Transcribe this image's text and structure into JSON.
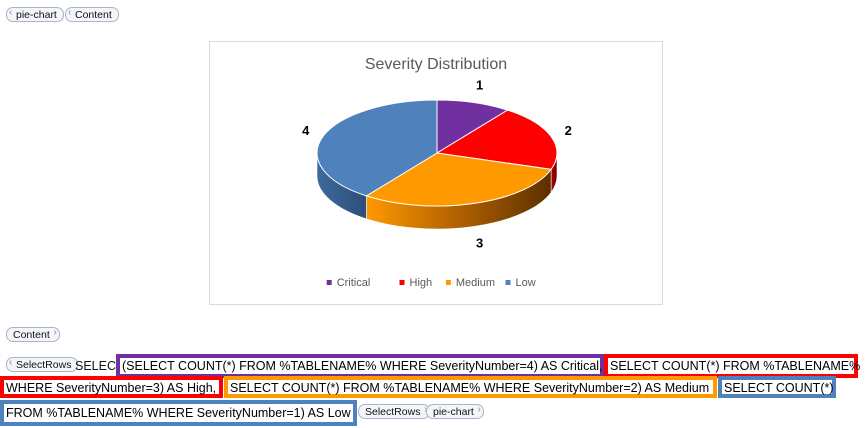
{
  "tags": {
    "top_pie": "pie-chart",
    "top_content": "Content",
    "mid_content": "Content",
    "select_open": "SelectRows",
    "select_close": "SelectRows",
    "bottom_pie": "pie-chart"
  },
  "sql": {
    "prefix": "SELECT",
    "critical": "(SELECT COUNT(*) FROM %TABLENAME% WHERE SeverityNumber=4) AS Critical,",
    "high_line1": "SELECT COUNT(*) FROM %TABLENAME%",
    "high_line2": "WHERE SeverityNumber=3) AS High,",
    "medium": "SELECT COUNT(*) FROM %TABLENAME% WHERE SeverityNumber=2) AS Medium",
    "low_line1": "SELECT COUNT(*)",
    "low_line2": "FROM %TABLENAME% WHERE SeverityNumber=1) AS Low"
  },
  "colors": {
    "critical": "#7030a0",
    "high": "#ff0000",
    "medium": "#ff9900",
    "low": "#4f81bd"
  },
  "chart_data": {
    "type": "pie",
    "title": "Severity Distribution",
    "categories": [
      "Critical",
      "High",
      "Medium",
      "Low"
    ],
    "values": [
      1,
      2,
      3,
      4
    ],
    "data_labels": [
      "1",
      "2",
      "3",
      "4"
    ],
    "legend_position": "bottom",
    "style": "3d"
  }
}
